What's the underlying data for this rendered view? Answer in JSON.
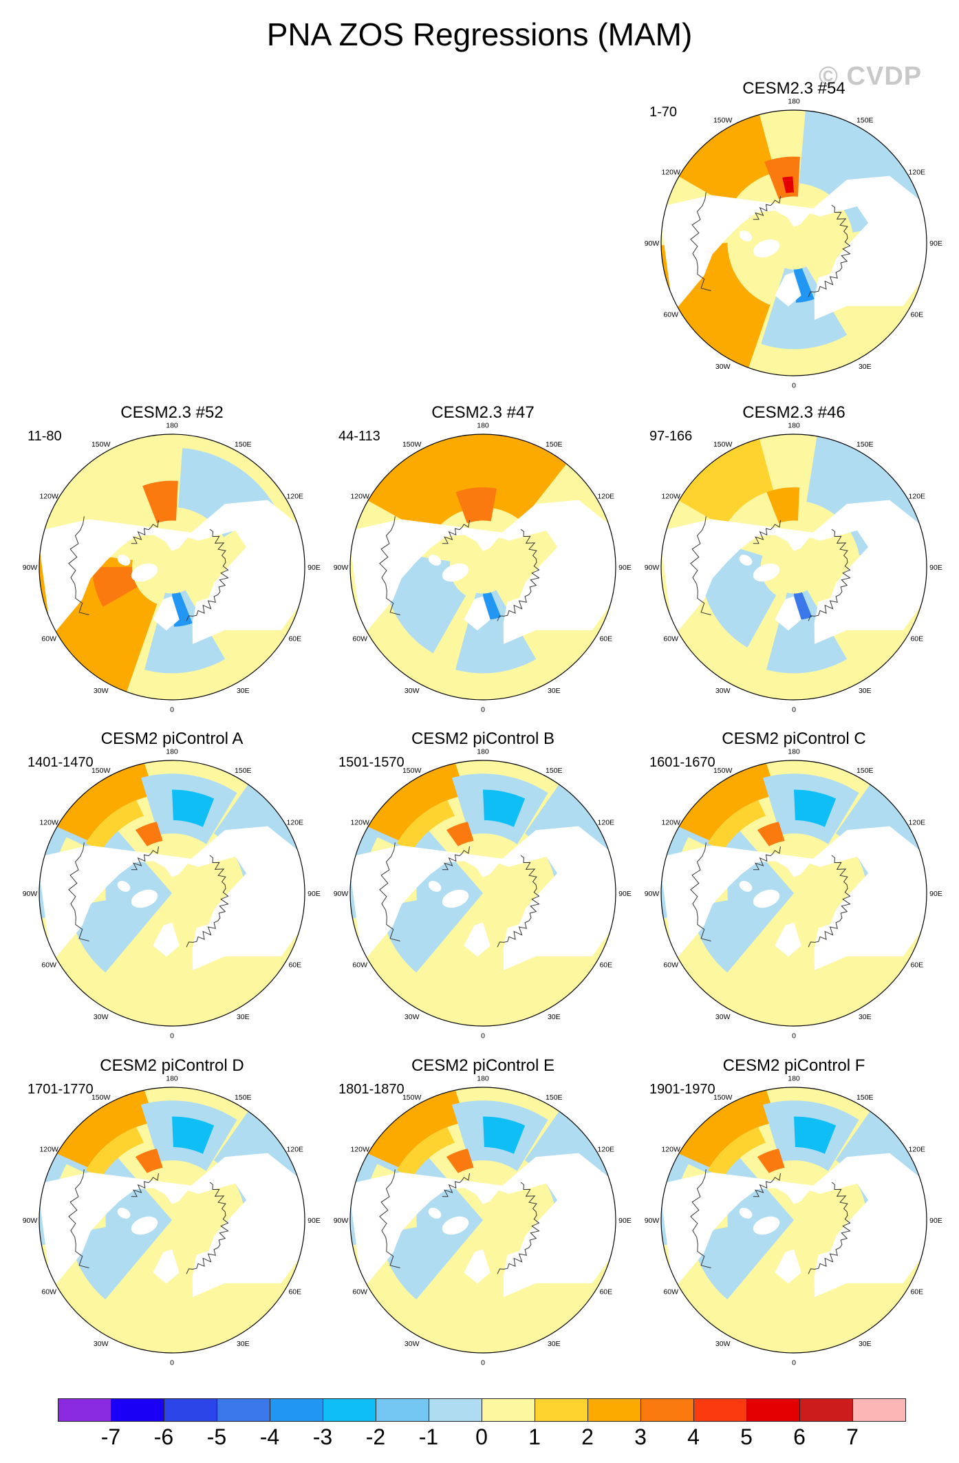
{
  "title": "PNA ZOS Regressions (MAM)",
  "watermark": "© CVDP",
  "panels": [
    {
      "title": "CESM2.3 #54",
      "years": "1-70",
      "pattern": "cesm23_a"
    },
    {
      "title": "CESM2.3 #52",
      "years": "11-80",
      "pattern": "cesm23_b"
    },
    {
      "title": "CESM2.3 #47",
      "years": "44-113",
      "pattern": "cesm23_c"
    },
    {
      "title": "CESM2.3 #46",
      "years": "97-166",
      "pattern": "cesm23_d"
    },
    {
      "title": "CESM2 piControl A",
      "years": "1401-1470",
      "pattern": "pi"
    },
    {
      "title": "CESM2 piControl B",
      "years": "1501-1570",
      "pattern": "pi"
    },
    {
      "title": "CESM2 piControl C",
      "years": "1601-1670",
      "pattern": "pi"
    },
    {
      "title": "CESM2 piControl D",
      "years": "1701-1770",
      "pattern": "pi"
    },
    {
      "title": "CESM2 piControl E",
      "years": "1801-1870",
      "pattern": "pi"
    },
    {
      "title": "CESM2 piControl F",
      "years": "1901-1970",
      "pattern": "pi"
    }
  ],
  "lon_labels": [
    "180",
    "150E",
    "120E",
    "90E",
    "60E",
    "30E",
    "0",
    "30W",
    "60W",
    "90W",
    "120W",
    "150W"
  ],
  "colorbar": {
    "colors": [
      "#8a2be2",
      "#1a00f5",
      "#2b45e8",
      "#3a78ea",
      "#2196f3",
      "#0fbef5",
      "#73c7f2",
      "#b0dcf2",
      "#fdf7a0",
      "#fed330",
      "#fdaa00",
      "#fb7a10",
      "#fb3a10",
      "#e40000",
      "#cc1c1c",
      "#fcb6b6"
    ],
    "labels": [
      "-7",
      "-6",
      "-5",
      "-4",
      "-3",
      "-2",
      "-1",
      "0",
      "1",
      "2",
      "3",
      "4",
      "5",
      "6",
      "7"
    ]
  }
}
